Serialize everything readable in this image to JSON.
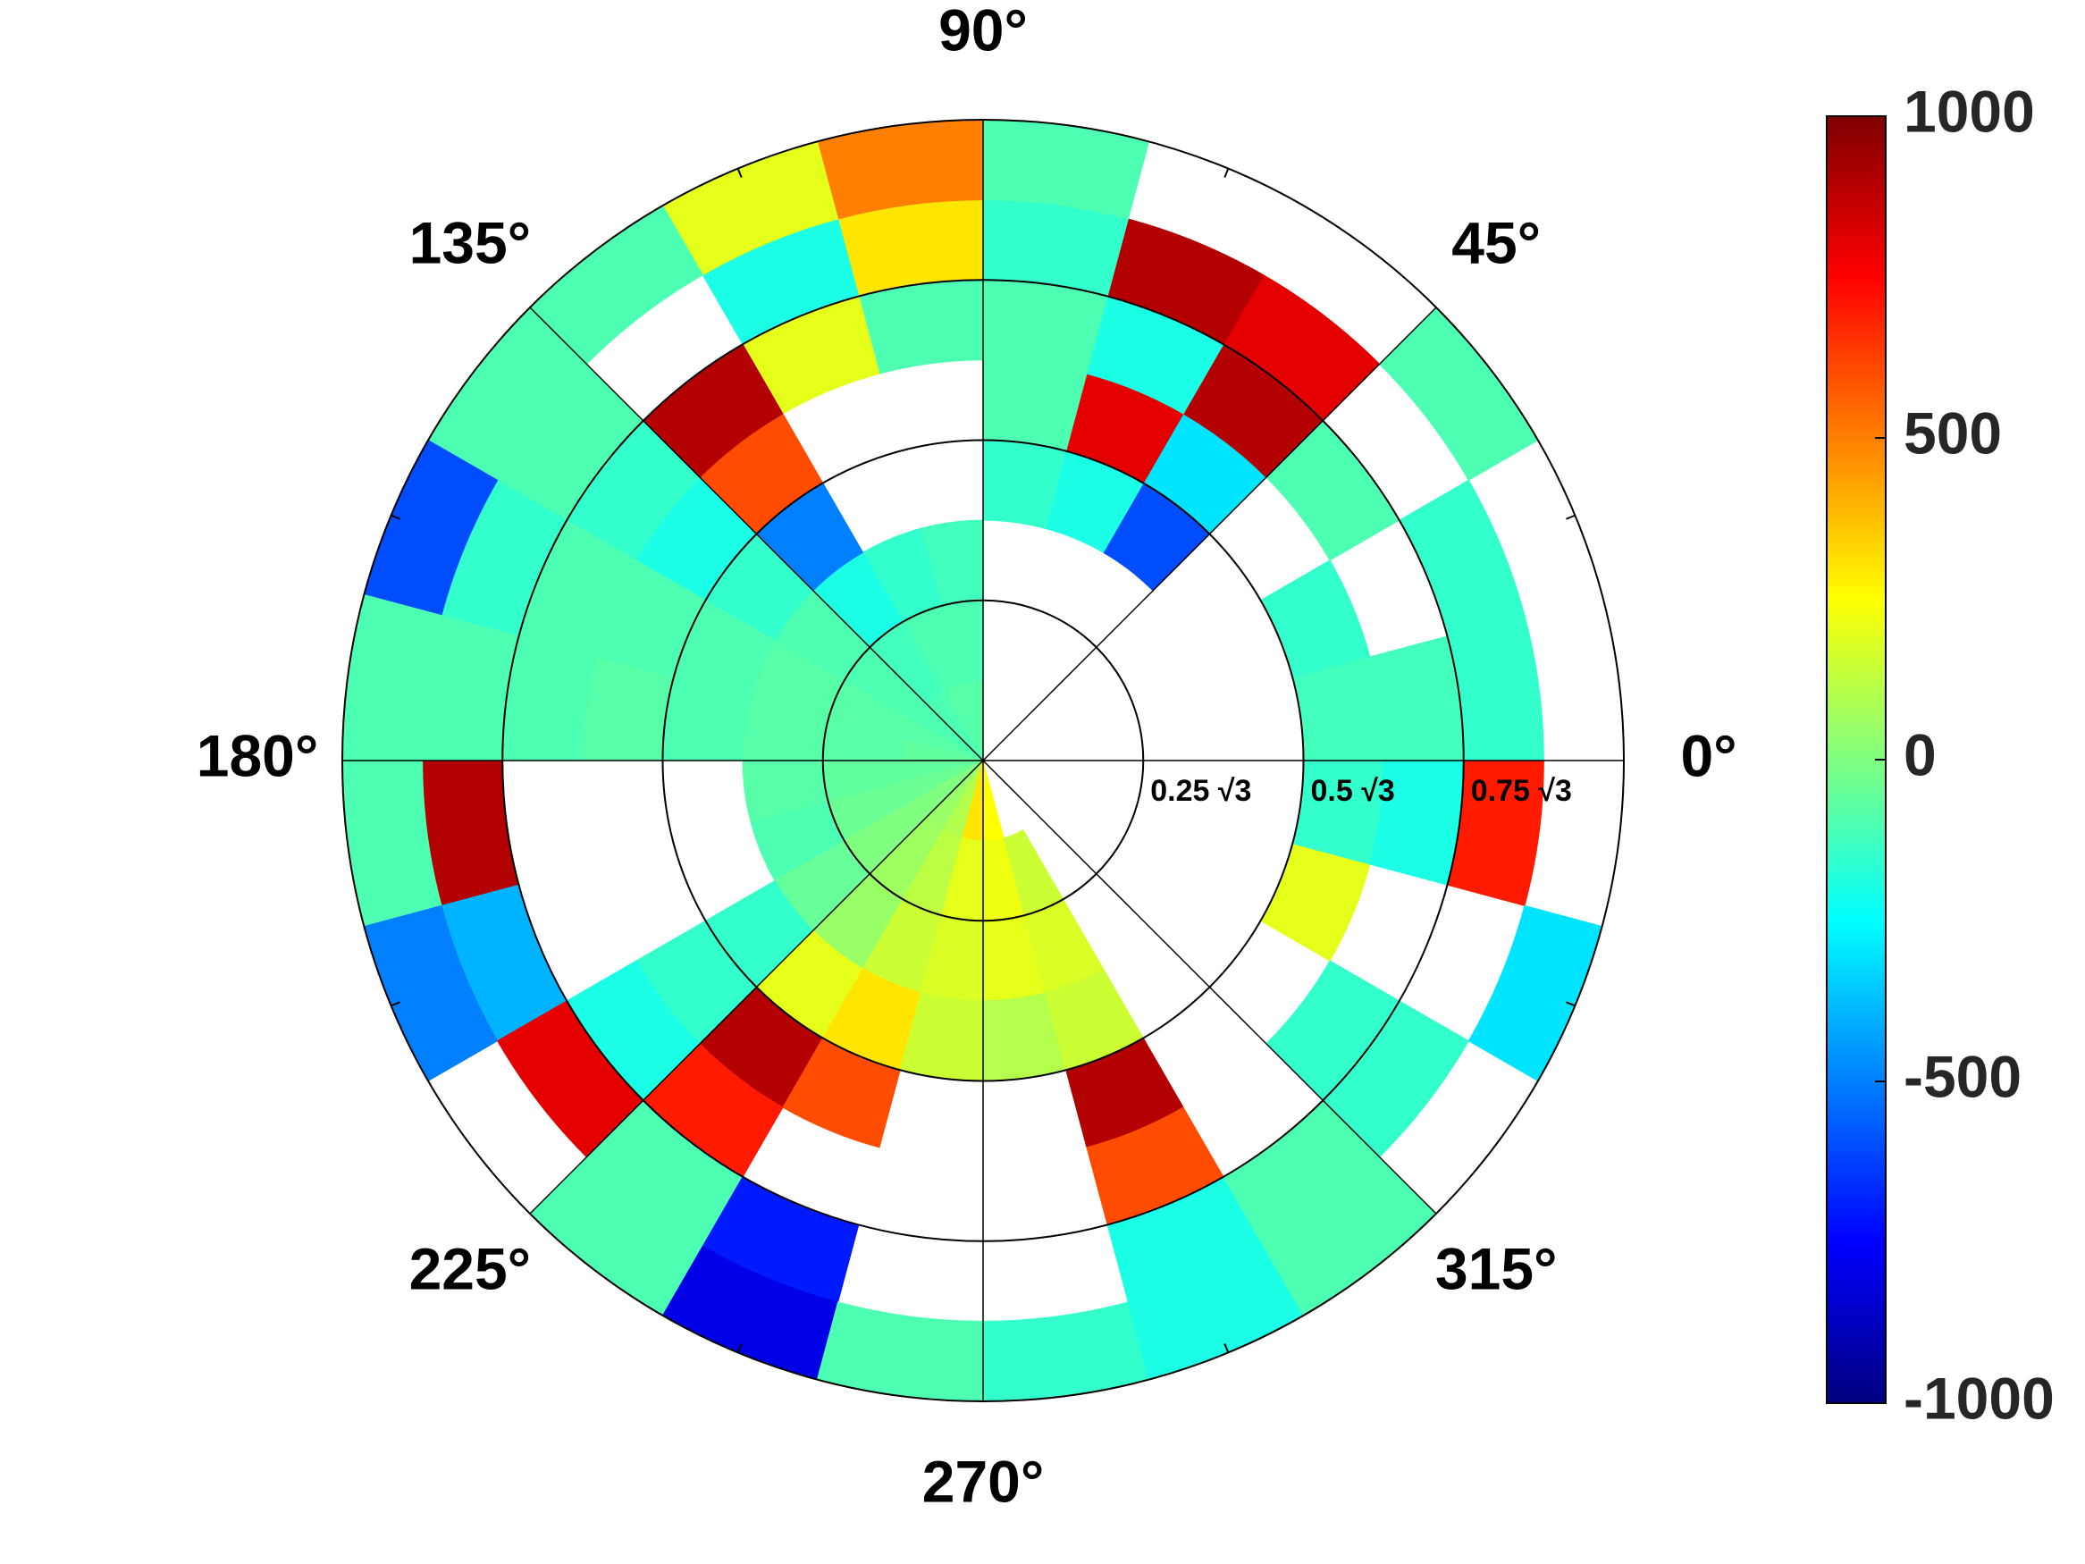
{
  "chart_data": {
    "type": "polar_heatmap",
    "colormap": "jet",
    "clim": [
      -1000,
      1000
    ],
    "cticks": [
      -1000,
      -500,
      0,
      500,
      1000
    ],
    "rlim": [
      0,
      1
    ],
    "rticks": [
      {
        "value": 0.25,
        "label": "0.25 √3"
      },
      {
        "value": 0.5,
        "label": "0.5 √3"
      },
      {
        "value": 0.75,
        "label": "0.75 √3"
      }
    ],
    "thetaticks": [
      {
        "value": 0,
        "label": "0°"
      },
      {
        "value": 45,
        "label": "45°"
      },
      {
        "value": 90,
        "label": "90°"
      },
      {
        "value": 135,
        "label": "135°"
      },
      {
        "value": 180,
        "label": "180°"
      },
      {
        "value": 225,
        "label": "225°"
      },
      {
        "value": 270,
        "label": "270°"
      },
      {
        "value": 315,
        "label": "315°"
      }
    ],
    "theta_minor_ticks": [
      22.5,
      67.5,
      112.5,
      157.5,
      202.5,
      247.5,
      292.5,
      337.5
    ],
    "r_edges": [
      0,
      0.125,
      0.25,
      0.375,
      0.5,
      0.625,
      0.75,
      0.875,
      1
    ],
    "theta_edges": [
      0,
      15,
      30,
      45,
      60,
      75,
      90,
      105,
      120,
      135,
      150,
      165,
      180,
      195,
      210,
      225,
      240,
      255,
      270,
      285,
      300,
      315,
      330,
      345,
      360
    ],
    "values": [
      [
        null,
        null,
        null,
        null,
        null,
        null,
        -80,
        -80,
        -100,
        -100,
        -80,
        -60,
        -60,
        -40,
        0,
        50,
        100,
        300,
        250,
        null,
        null,
        null,
        null,
        null
      ],
      [
        null,
        null,
        null,
        null,
        null,
        null,
        -100,
        -100,
        -120,
        -100,
        -80,
        -80,
        -60,
        -40,
        0,
        60,
        120,
        200,
        220,
        150,
        null,
        null,
        null,
        null
      ],
      [
        null,
        null,
        null,
        null,
        null,
        null,
        -120,
        -150,
        -200,
        -100,
        -80,
        -80,
        -80,
        -100,
        -50,
        50,
        150,
        180,
        200,
        180,
        null,
        null,
        null,
        null
      ],
      [
        null,
        null,
        null,
        -600,
        -200,
        -150,
        null,
        null,
        -500,
        -150,
        -100,
        -100,
        null,
        null,
        -150,
        200,
        300,
        150,
        100,
        150,
        null,
        null,
        null,
        null
      ],
      [
        -120,
        -150,
        null,
        -300,
        800,
        -100,
        null,
        null,
        600,
        -200,
        -100,
        -80,
        null,
        null,
        -150,
        900,
        600,
        null,
        null,
        900,
        null,
        null,
        200,
        -150
      ],
      [
        -120,
        null,
        -100,
        900,
        -200,
        -100,
        -100,
        200,
        900,
        -150,
        -100,
        -100,
        null,
        null,
        -200,
        700,
        null,
        null,
        null,
        600,
        null,
        -150,
        null,
        -200
      ],
      [
        -150,
        -150,
        null,
        800,
        900,
        -150,
        300,
        -200,
        null,
        -100,
        -150,
        -100,
        900,
        -400,
        800,
        -100,
        -700,
        null,
        null,
        -200,
        -100,
        -150,
        null,
        700
      ],
      [
        null,
        null,
        -100,
        null,
        null,
        -100,
        500,
        200,
        -100,
        -100,
        -600,
        -100,
        -100,
        -500,
        null,
        -100,
        -800,
        -100,
        -150,
        -200,
        -100,
        null,
        -300,
        null
      ]
    ]
  }
}
